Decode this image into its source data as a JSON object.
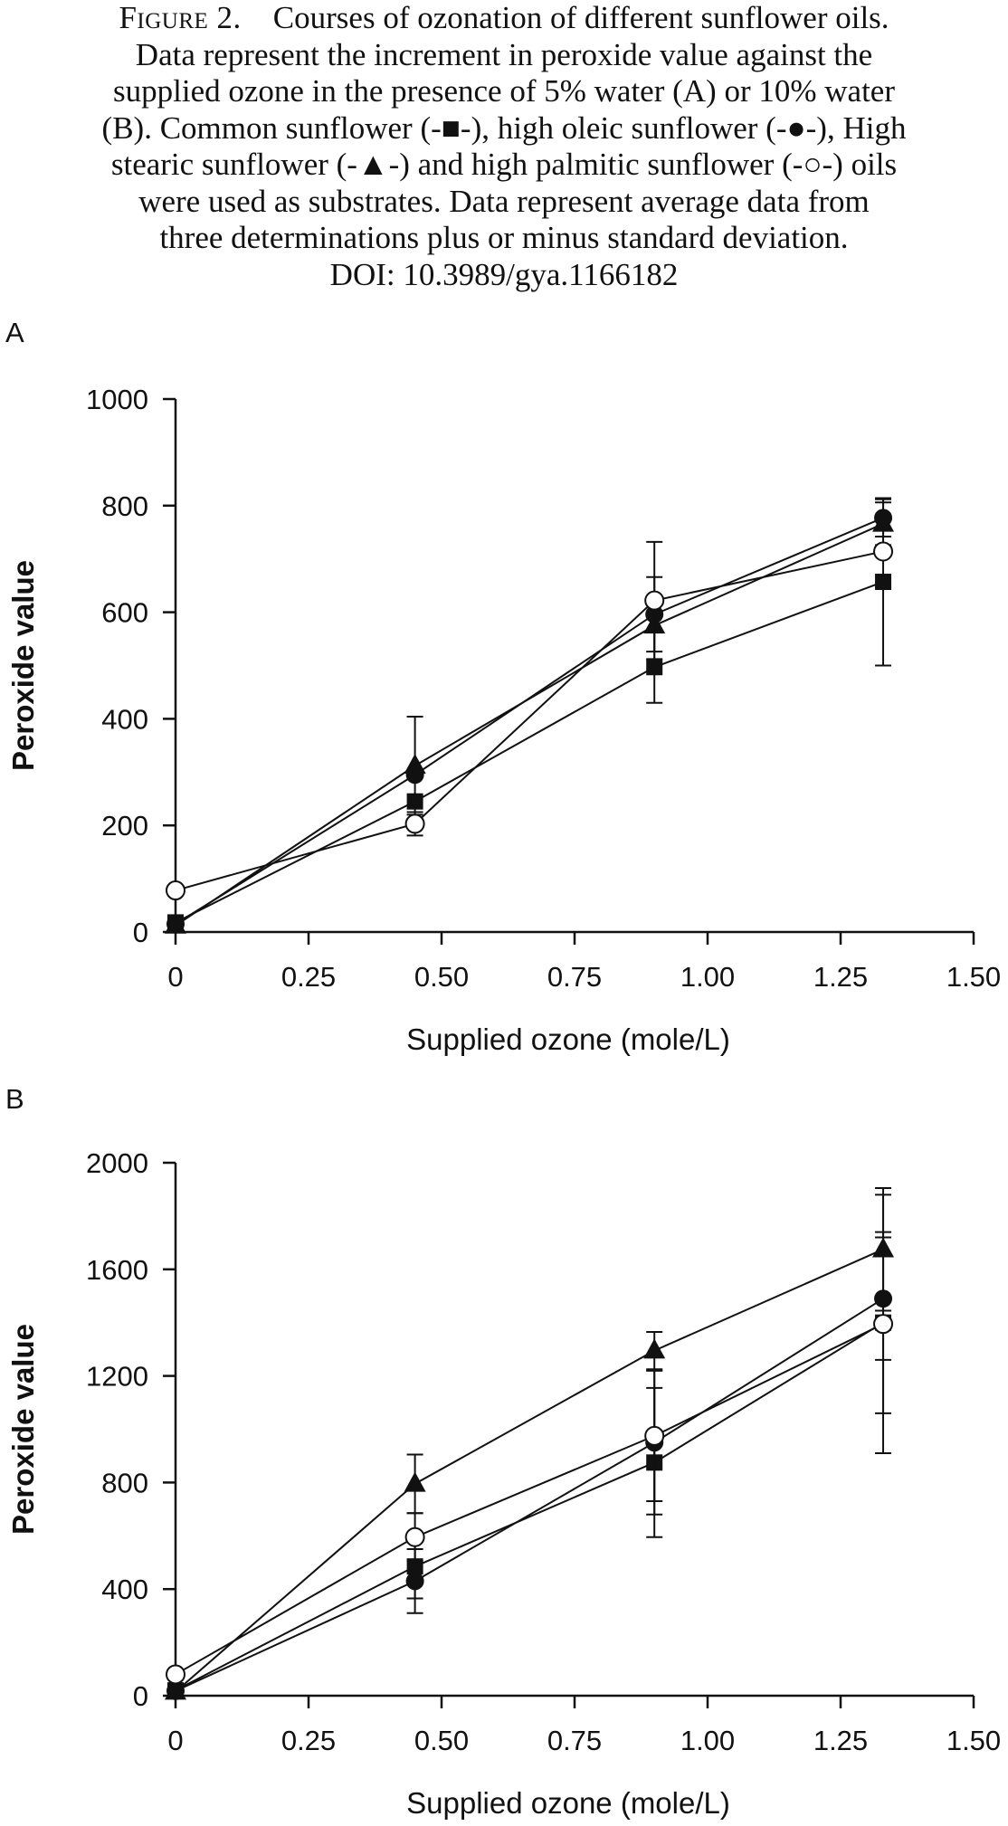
{
  "caption": {
    "figure_label": "Figure 2.",
    "line1": "Courses of ozonation of different sunflower oils.",
    "line2": "Data represent the increment in peroxide value against the",
    "line3": "supplied ozone in the presence of 5% water (A) or 10% water",
    "line4": "(B). Common sunflower (-■-), high oleic sunflower (-●-), High",
    "line5": "stearic sunflower (-▲-) and high palmitic sunflower (-○-) oils",
    "line6": "were used as substrates. Data represent average data from",
    "line7": "three determinations plus or minus standard deviation.",
    "line8": "DOI: 10.3989/gya.1166182"
  },
  "chart_data": [
    {
      "panel": "A",
      "type": "line",
      "xlabel": "Supplied ozone (mole/L)",
      "ylabel": "Peroxide value",
      "xlim": [
        0,
        1.5
      ],
      "ylim": [
        0,
        1000
      ],
      "xticks": [
        "0",
        "0.25",
        "0.50",
        "0.75",
        "1.00",
        "1.25",
        "1.50"
      ],
      "yticks": [
        "0",
        "200",
        "400",
        "600",
        "800",
        "1000"
      ],
      "grid": false,
      "x": [
        0,
        0.45,
        0.9,
        1.33
      ],
      "series": [
        {
          "marker": "square",
          "values": [
            18,
            245,
            497,
            657
          ],
          "errors": [
            null,
            null,
            67,
            157
          ]
        },
        {
          "marker": "circle-filled",
          "values": [
            15,
            295,
            596,
            777
          ],
          "errors": [
            null,
            null,
            70,
            35
          ]
        },
        {
          "marker": "triangle",
          "values": [
            12,
            312,
            575,
            766
          ],
          "errors": [
            null,
            92,
            null,
            40
          ]
        },
        {
          "marker": "circle-open",
          "values": [
            78,
            203,
            622,
            714
          ],
          "errors": [
            null,
            22,
            110,
            null
          ]
        }
      ]
    },
    {
      "panel": "B",
      "type": "line",
      "xlabel": "Supplied ozone (mole/L)",
      "ylabel": "Peroxide value",
      "xlim": [
        0,
        1.5
      ],
      "ylim": [
        0,
        2000
      ],
      "xticks": [
        "0",
        "0.25",
        "0.50",
        "0.75",
        "1.00",
        "1.25",
        "1.50"
      ],
      "yticks": [
        "0",
        "400",
        "800",
        "1200",
        "1600",
        "2000"
      ],
      "grid": false,
      "x": [
        0,
        0.45,
        0.9,
        1.33
      ],
      "series": [
        {
          "marker": "square",
          "values": [
            20,
            485,
            875,
            1400
          ],
          "errors": [
            null,
            120,
            280,
            340
          ]
        },
        {
          "marker": "circle-filled",
          "values": [
            18,
            430,
            950,
            1490
          ],
          "errors": [
            null,
            120,
            270,
            230
          ]
        },
        {
          "marker": "triangle",
          "values": [
            15,
            795,
            1295,
            1675
          ],
          "errors": [
            null,
            110,
            70,
            230
          ]
        },
        {
          "marker": "circle-open",
          "values": [
            80,
            595,
            975,
            1395
          ],
          "errors": [
            null,
            90,
            245,
            485
          ]
        }
      ]
    }
  ]
}
